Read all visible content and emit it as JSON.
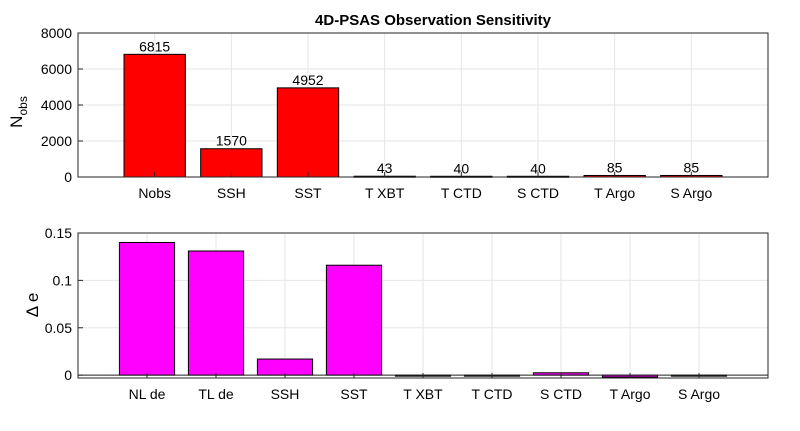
{
  "chart_data": [
    {
      "type": "bar",
      "title": "4D-PSAS Observation Sensitivity",
      "ylabel": "N",
      "ylabel_sub": "obs",
      "xlabel": "",
      "categories": [
        "Nobs",
        "SSH",
        "SST",
        "T XBT",
        "T CTD",
        "S CTD",
        "T Argo",
        "S Argo"
      ],
      "values": [
        6815,
        1570,
        4952,
        43,
        40,
        40,
        85,
        85
      ],
      "data_labels": [
        "6815",
        "1570",
        "4952",
        "43",
        "40",
        "40",
        "85",
        "85"
      ],
      "ylim": [
        0,
        8000
      ],
      "yticks": [
        "0",
        "2000",
        "4000",
        "6000",
        "8000"
      ],
      "bar_color": "#ff0000",
      "grid": true,
      "legend": "none"
    },
    {
      "type": "bar",
      "title": "",
      "ylabel": "Δ e",
      "xlabel": "",
      "categories": [
        "NL de",
        "TL de",
        "SSH",
        "SST",
        "T XBT",
        "T CTD",
        "S CTD",
        "T Argo",
        "S Argo"
      ],
      "values": [
        0.14,
        0.131,
        0.017,
        0.116,
        0,
        -0.0005,
        0.0025,
        -0.002,
        -0.0005
      ],
      "ylim": [
        -0.003,
        0.15
      ],
      "yticks": [
        "0",
        "0.05",
        "0.1",
        "0.15"
      ],
      "bar_color": "#ff00ff",
      "grid": true,
      "legend": "none"
    }
  ]
}
